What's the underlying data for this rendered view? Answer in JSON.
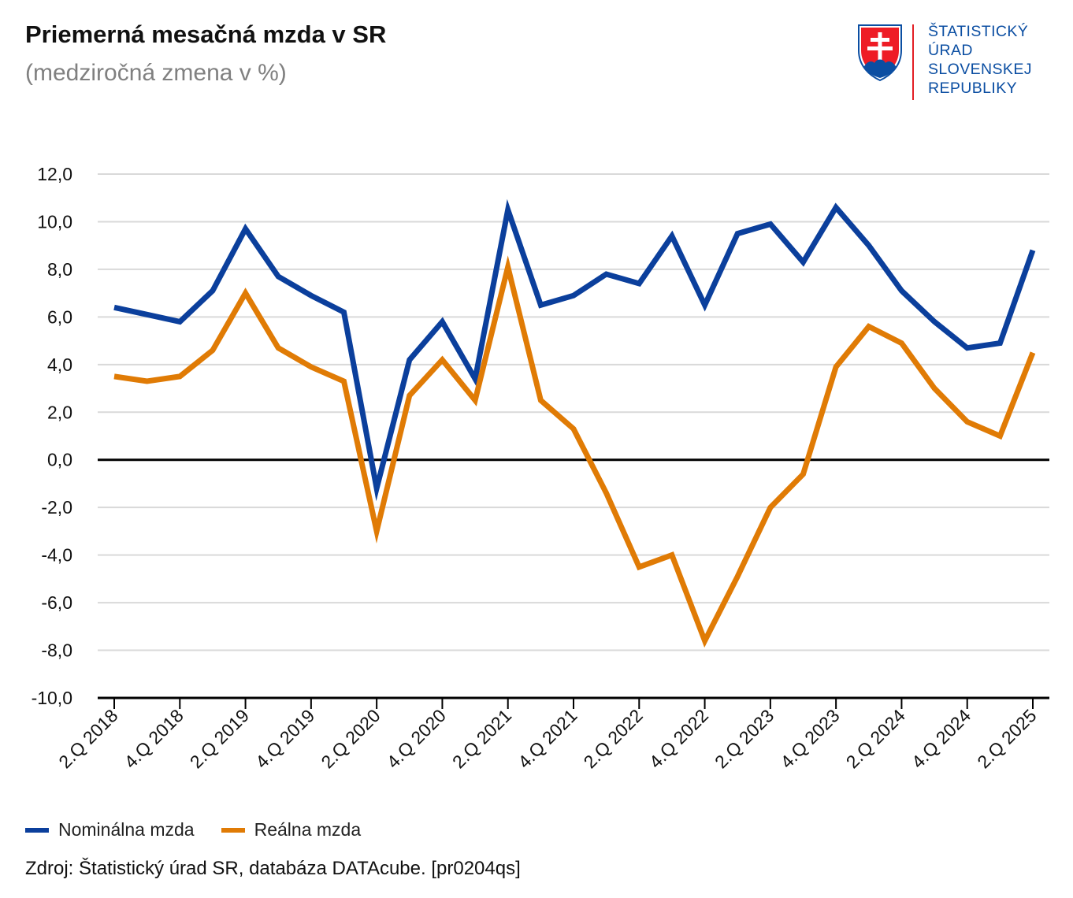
{
  "title": "Priemerná mesačná mzda v SR",
  "subtitle": "(medziročná zmena v %)",
  "logo": {
    "lines": [
      "ŠTATISTICKÝ",
      "ÚRAD",
      "SLOVENSKEJ",
      "REPUBLIKY"
    ],
    "emblem": "slovak-coat-of-arms",
    "colors": {
      "text": "#0b4ea2",
      "accent": "#e31e24",
      "shield_red": "#ee1c25",
      "shield_blue": "#0b4ea2"
    }
  },
  "source": "Zdroj: Štatistický úrad SR, databáza DATAcube. [pr0204qs]",
  "chart_data": {
    "type": "line",
    "title": "Priemerná mesačná mzda v SR",
    "subtitle": "(medziročná zmena v %)",
    "ylim": [
      -10,
      12
    ],
    "yticks": [
      "12,0",
      "10,0",
      "8,0",
      "6,0",
      "4,0",
      "2,0",
      "0,0",
      "-2,0",
      "-4,0",
      "-6,0",
      "-8,0",
      "-10,0"
    ],
    "ytick_values": [
      12,
      10,
      8,
      6,
      4,
      2,
      0,
      -2,
      -4,
      -6,
      -8,
      -10
    ],
    "grid": true,
    "legend_position": "bottom-left",
    "categories": [
      "2.Q 2018",
      "3.Q 2018",
      "4.Q 2018",
      "1.Q 2019",
      "2.Q 2019",
      "3.Q 2019",
      "4.Q 2019",
      "1.Q 2020",
      "2.Q 2020",
      "3.Q 2020",
      "4.Q 2020",
      "1.Q 2021",
      "2.Q 2021",
      "3.Q 2021",
      "4.Q 2021",
      "1.Q 2022",
      "2.Q 2022",
      "3.Q 2022",
      "4.Q 2022",
      "1.Q 2023",
      "2.Q 2023",
      "3.Q 2023",
      "4.Q 2023",
      "1.Q 2024",
      "2.Q 2024",
      "3.Q 2024",
      "4.Q 2024",
      "1.Q 2025",
      "2.Q 2025"
    ],
    "xtick_labels": [
      "2.Q 2018",
      "4.Q 2018",
      "2.Q 2019",
      "4.Q 2019",
      "2.Q 2020",
      "4.Q 2020",
      "2.Q 2021",
      "4.Q 2021",
      "2.Q 2022",
      "4.Q 2022",
      "2.Q 2023",
      "4.Q 2023",
      "2.Q 2024",
      "4.Q 2024",
      "2.Q 2025"
    ],
    "series": [
      {
        "name": "Nominálna mzda",
        "color": "#0b3f9c",
        "values": [
          6.4,
          6.1,
          5.8,
          7.1,
          9.7,
          7.7,
          6.9,
          6.2,
          -1.2,
          4.2,
          5.8,
          3.4,
          10.5,
          6.5,
          6.9,
          7.8,
          7.4,
          9.4,
          6.5,
          9.5,
          9.9,
          8.3,
          10.6,
          9.0,
          7.1,
          5.8,
          4.7,
          4.9,
          8.8
        ]
      },
      {
        "name": "Reálna mzda",
        "color": "#e07b05",
        "values": [
          3.5,
          3.3,
          3.5,
          4.6,
          7.0,
          4.7,
          3.9,
          3.3,
          -3.0,
          2.7,
          4.2,
          2.5,
          8.1,
          2.5,
          1.3,
          -1.4,
          -4.5,
          -4.0,
          -7.6,
          -4.9,
          -2.0,
          -0.6,
          3.9,
          5.6,
          4.9,
          3.0,
          1.6,
          1.0,
          4.5
        ]
      }
    ]
  }
}
